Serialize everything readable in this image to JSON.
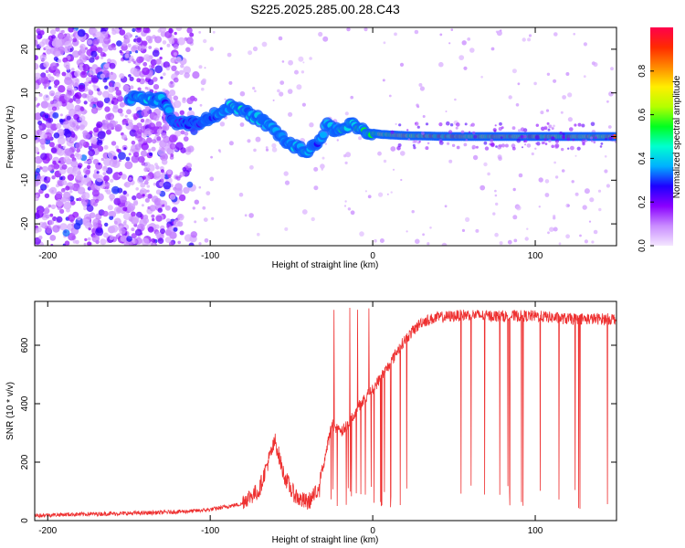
{
  "chart_data": [
    {
      "type": "heatmap",
      "title": "S225.2025.285.00.28.C43",
      "xlabel": "Height of straight line (km)",
      "ylabel": "Frequency (Hz)",
      "xlim": [
        -208,
        150
      ],
      "ylim": [
        -25,
        25
      ],
      "xticks": [
        "-200",
        "-100",
        "0",
        "100"
      ],
      "xtick_values": [
        -200,
        -100,
        0,
        100
      ],
      "yticks": [
        "20",
        "10",
        "0",
        "-10",
        "-20"
      ],
      "ytick_values": [
        20,
        10,
        0,
        -10,
        -20
      ],
      "colorbar": {
        "label": "Normalized spectral amplitude",
        "ticks": [
          "0.0",
          "0.2",
          "0.4",
          "0.6",
          "0.8"
        ],
        "tick_values": [
          0.0,
          0.2,
          0.4,
          0.6,
          0.8
        ],
        "range": [
          0,
          1
        ],
        "colors": [
          "#f4e6ff",
          "#c98cff",
          "#8a00ff",
          "#1e00ff",
          "#00b0ff",
          "#00ffd0",
          "#00ff20",
          "#b4ff00",
          "#ffee00",
          "#ff8a00",
          "#ff2a00",
          "#ff004c"
        ]
      },
      "ridge_points": [
        {
          "x": -150,
          "y": 9,
          "a": 0.35
        },
        {
          "x": -140,
          "y": 8.5,
          "a": 0.45
        },
        {
          "x": -130,
          "y": 8.5,
          "a": 0.4
        },
        {
          "x": -122,
          "y": 3.5,
          "a": 0.3
        },
        {
          "x": -110,
          "y": 3,
          "a": 0.3
        },
        {
          "x": -100,
          "y": 4,
          "a": 0.35
        },
        {
          "x": -90,
          "y": 7,
          "a": 0.4
        },
        {
          "x": -82,
          "y": 6,
          "a": 0.45
        },
        {
          "x": -72,
          "y": 4.5,
          "a": 0.4
        },
        {
          "x": -62,
          "y": 2,
          "a": 0.4
        },
        {
          "x": -52,
          "y": -1.5,
          "a": 0.35
        },
        {
          "x": -42,
          "y": -3.5,
          "a": 0.45
        },
        {
          "x": -34,
          "y": -1.5,
          "a": 0.35
        },
        {
          "x": -28,
          "y": 2.5,
          "a": 0.4
        },
        {
          "x": -20,
          "y": 1,
          "a": 0.5
        },
        {
          "x": -12,
          "y": 3,
          "a": 0.45
        },
        {
          "x": -4,
          "y": 1,
          "a": 0.55
        },
        {
          "x": 5,
          "y": 0.5,
          "a": 0.7
        },
        {
          "x": 20,
          "y": 0.2,
          "a": 0.8
        },
        {
          "x": 50,
          "y": 0,
          "a": 0.85
        },
        {
          "x": 100,
          "y": 0,
          "a": 0.85
        },
        {
          "x": 150,
          "y": 0,
          "a": 0.8
        }
      ]
    },
    {
      "type": "line",
      "xlabel": "Height of straight line (km)",
      "ylabel": "SNR (10 * v/v)",
      "xlim": [
        -208,
        150
      ],
      "ylim": [
        0,
        750
      ],
      "xticks": [
        "-200",
        "-100",
        "0",
        "100"
      ],
      "xtick_values": [
        -200,
        -100,
        0,
        100
      ],
      "yticks": [
        "0",
        "200",
        "400",
        "600"
      ],
      "ytick_values": [
        0,
        200,
        400,
        600
      ],
      "color": "#ee3030",
      "series": [
        {
          "name": "SNR",
          "x": [
            -208,
            -190,
            -170,
            -150,
            -130,
            -110,
            -100,
            -90,
            -80,
            -70,
            -65,
            -60,
            -55,
            -50,
            -45,
            -40,
            -35,
            -30,
            -25,
            -20,
            -15,
            -10,
            -5,
            0,
            5,
            10,
            15,
            20,
            25,
            30,
            40,
            50,
            60,
            70,
            80,
            90,
            100,
            110,
            120,
            130,
            140,
            150
          ],
          "y": [
            15,
            18,
            20,
            22,
            25,
            30,
            35,
            45,
            55,
            90,
            180,
            260,
            150,
            90,
            60,
            50,
            80,
            200,
            330,
            300,
            330,
            380,
            420,
            450,
            490,
            530,
            580,
            620,
            650,
            680,
            695,
            700,
            705,
            700,
            700,
            700,
            700,
            695,
            690,
            690,
            690,
            690
          ]
        }
      ]
    }
  ]
}
